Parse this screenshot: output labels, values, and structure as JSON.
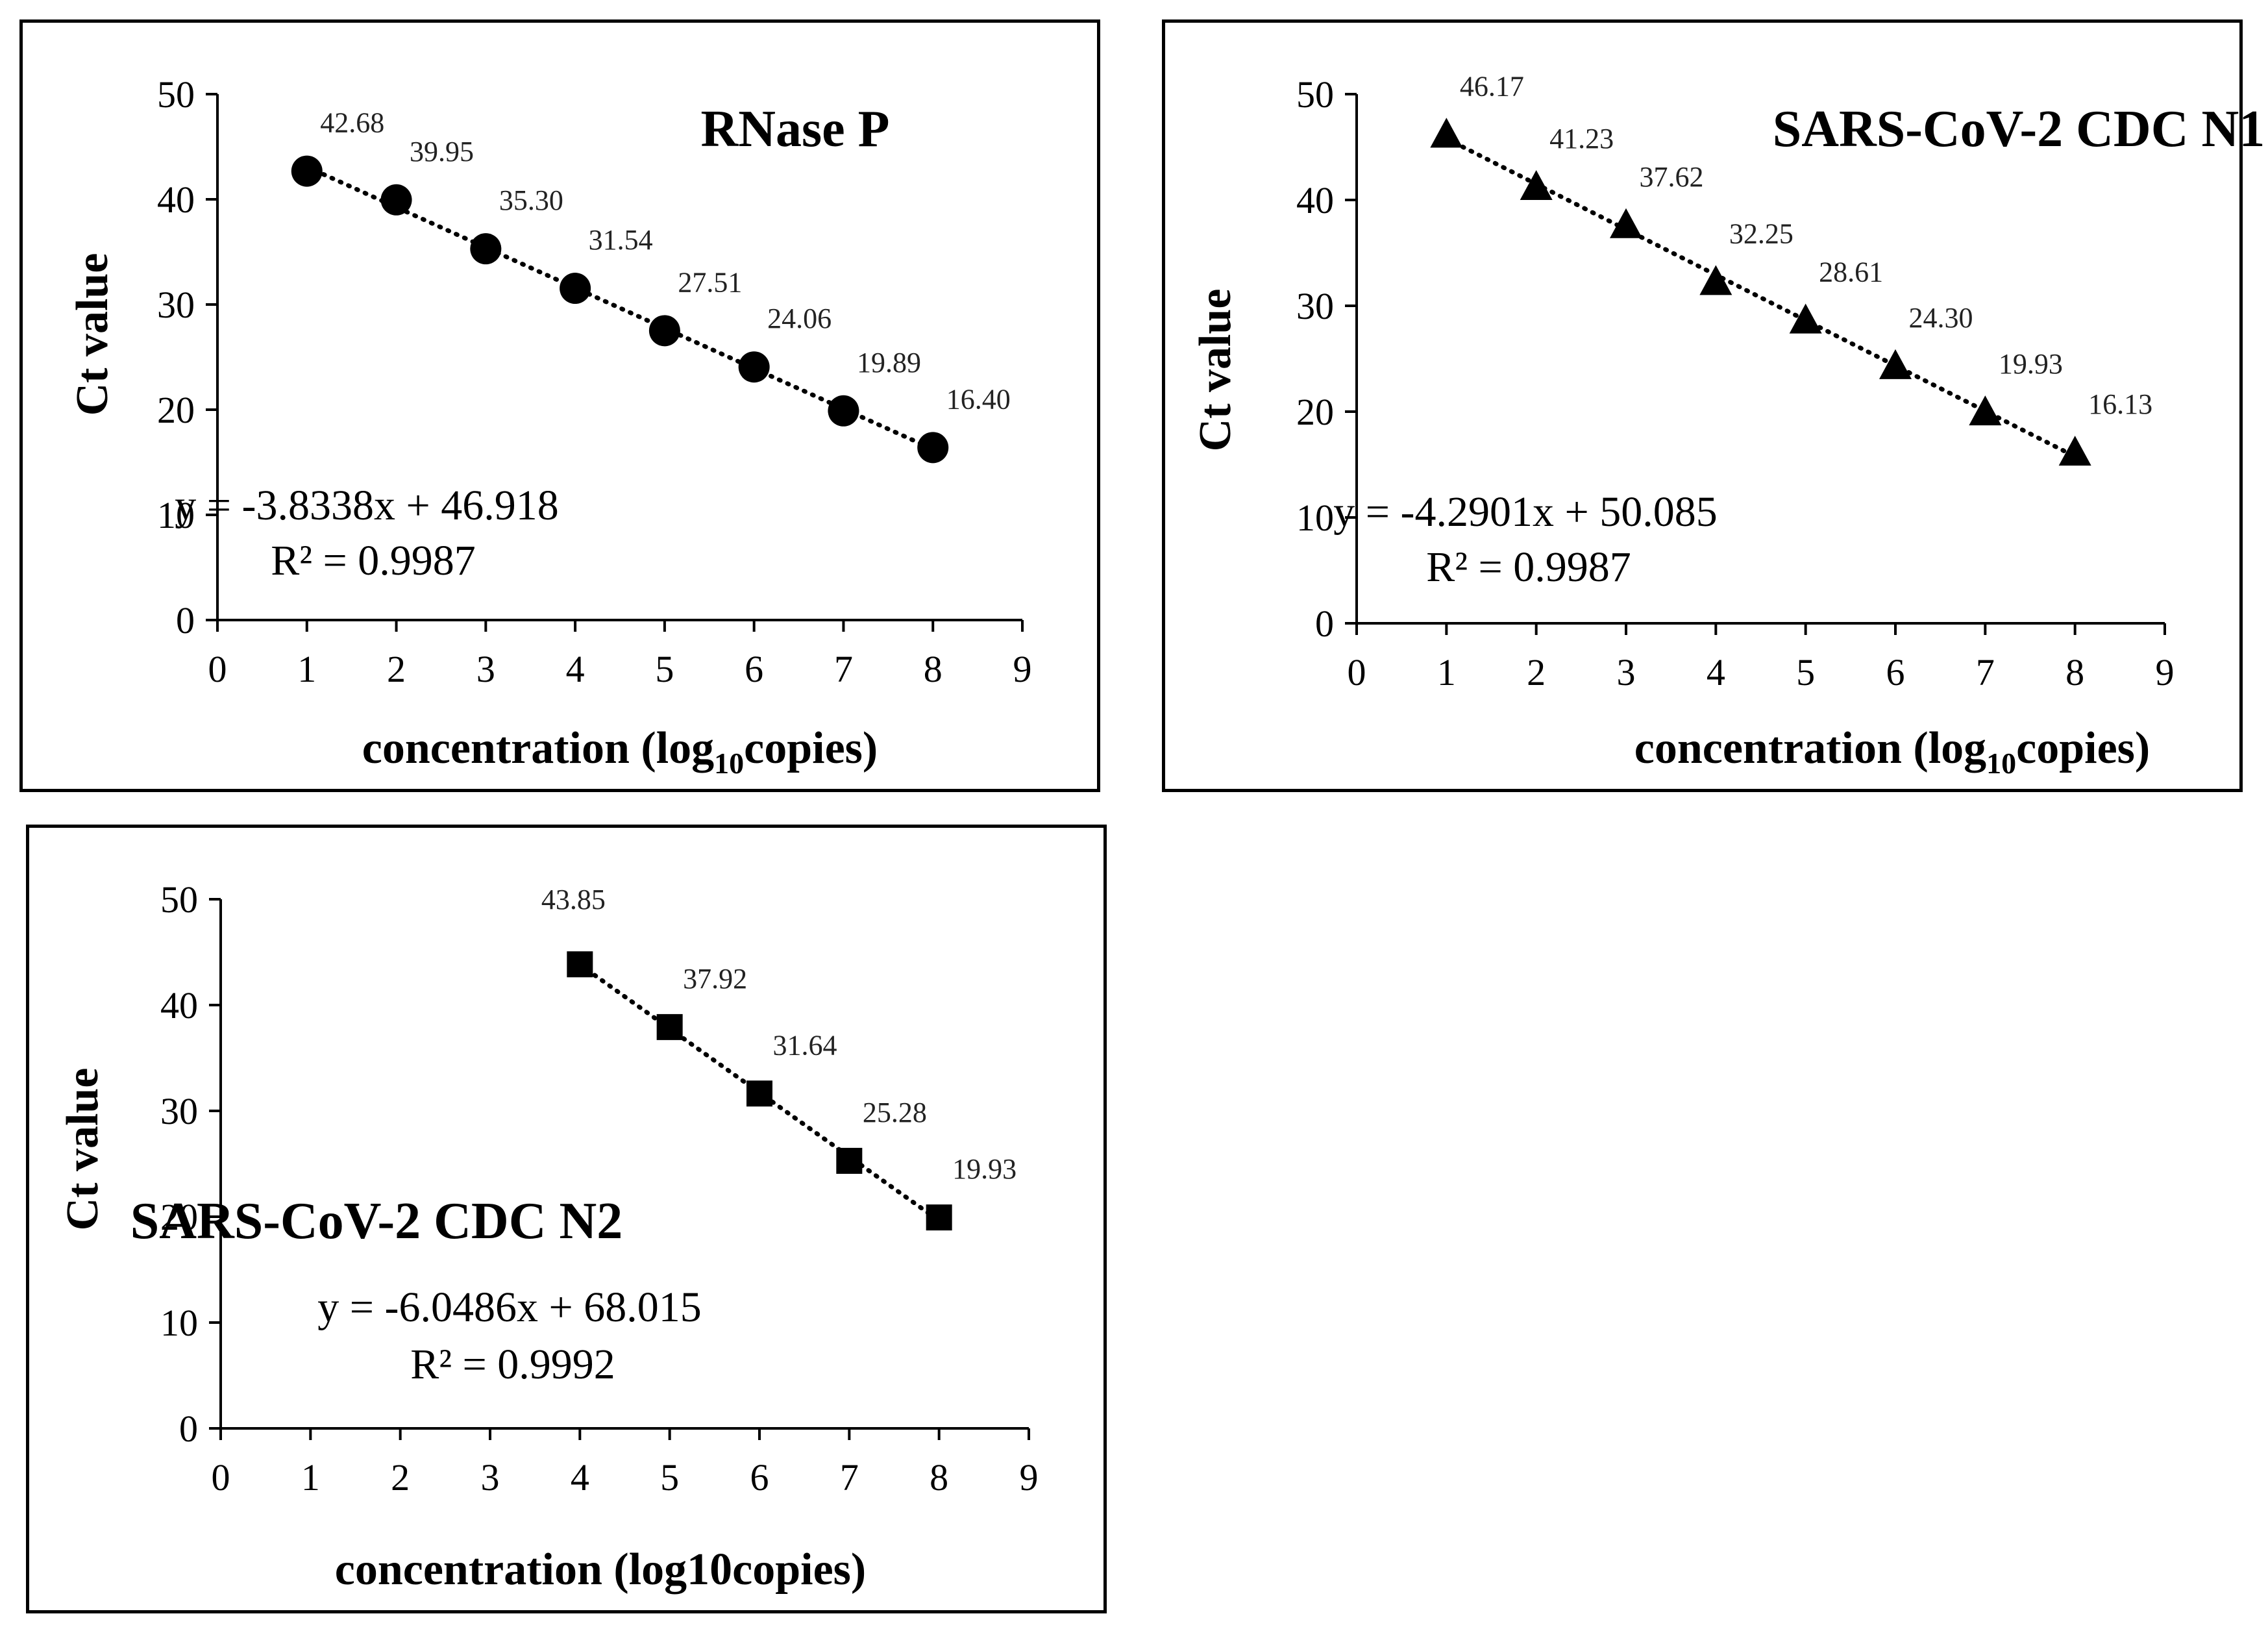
{
  "chart_data": [
    {
      "type": "scatter",
      "title": "RNase P",
      "marker": "circle",
      "ylabel": "Ct value",
      "xlabel": "concentration (log",
      "xlabel_sub": "10",
      "xlabel_end": "copies)",
      "xlim": [
        0,
        9
      ],
      "ylim": [
        0,
        50
      ],
      "x_ticks": [
        0,
        1,
        2,
        3,
        4,
        5,
        6,
        7,
        8,
        9
      ],
      "y_ticks": [
        0,
        10,
        20,
        30,
        40,
        50
      ],
      "x": [
        1,
        2,
        3,
        4,
        5,
        6,
        7,
        8
      ],
      "y": [
        42.68,
        39.95,
        35.3,
        31.54,
        27.51,
        24.06,
        19.89,
        16.4
      ],
      "point_labels": [
        "42.68",
        "39.95",
        "35.30",
        "31.54",
        "27.51",
        "24.06",
        "19.89",
        "16.40"
      ],
      "trendline": {
        "slope": -3.8338,
        "intercept": 46.918,
        "style": "dotted"
      },
      "equation": "y = -3.8338x + 46.918",
      "r_squared": "R² = 0.9987"
    },
    {
      "type": "scatter",
      "title": "SARS-CoV-2 CDC N1",
      "marker": "triangle",
      "ylabel": "Ct value",
      "xlabel": "concentration (log",
      "xlabel_sub": "10",
      "xlabel_end": "copies)",
      "xlim": [
        0,
        9
      ],
      "ylim": [
        0,
        50
      ],
      "x_ticks": [
        0,
        1,
        2,
        3,
        4,
        5,
        6,
        7,
        8,
        9
      ],
      "y_ticks": [
        0,
        10,
        20,
        30,
        40,
        50
      ],
      "x": [
        1,
        2,
        3,
        4,
        5,
        6,
        7,
        8
      ],
      "y": [
        46.17,
        41.23,
        37.62,
        32.25,
        28.61,
        24.3,
        19.93,
        16.13
      ],
      "point_labels": [
        "46.17",
        "41.23",
        "37.62",
        "32.25",
        "28.61",
        "24.30",
        "19.93",
        "16.13"
      ],
      "trendline": {
        "slope": -4.2901,
        "intercept": 50.085,
        "style": "dotted"
      },
      "equation": "y = -4.2901x + 50.085",
      "r_squared": "R² = 0.9987"
    },
    {
      "type": "scatter",
      "title": "SARS-CoV-2 CDC N2",
      "marker": "square",
      "ylabel": "Ct value",
      "xlabel": "concentration (log10copies)",
      "xlabel_sub": "",
      "xlabel_end": "",
      "xlim": [
        0,
        9
      ],
      "ylim": [
        0,
        50
      ],
      "x_ticks": [
        0,
        1,
        2,
        3,
        4,
        5,
        6,
        7,
        8,
        9
      ],
      "y_ticks": [
        0,
        10,
        20,
        30,
        40,
        50
      ],
      "x": [
        4,
        5,
        6,
        7,
        8
      ],
      "y": [
        43.85,
        37.92,
        31.64,
        25.28,
        19.93
      ],
      "point_labels": [
        "43.85",
        "37.92",
        "31.64",
        "25.28",
        "19.93"
      ],
      "trendline": {
        "slope": -6.0486,
        "intercept": 68.015,
        "style": "dotted"
      },
      "equation": "y = -6.0486x + 68.015",
      "r_squared": "R² = 0.9992"
    }
  ]
}
